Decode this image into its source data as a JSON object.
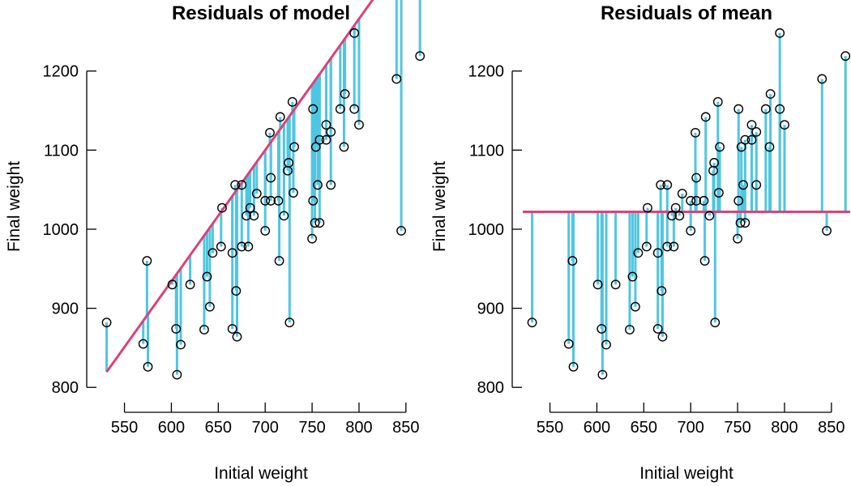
{
  "chart_data": [
    {
      "type": "scatter",
      "title": "Residuals of model",
      "xlabel": "Initial weight",
      "ylabel": "Final weight",
      "xlim": [
        521,
        870
      ],
      "ylim": [
        790,
        1255
      ],
      "xticks": [
        550,
        600,
        650,
        700,
        750,
        800,
        850
      ],
      "yticks": [
        800,
        900,
        1000,
        1100,
        1200
      ],
      "fit_line": {
        "kind": "regression",
        "intercept": -62,
        "slope": 1.66
      },
      "residual_color": "#4fc6e1",
      "line_color": "#d9427a",
      "points": [
        {
          "x": 531,
          "y": 882
        },
        {
          "x": 570,
          "y": 855
        },
        {
          "x": 574,
          "y": 960
        },
        {
          "x": 575,
          "y": 826
        },
        {
          "x": 601,
          "y": 930
        },
        {
          "x": 605,
          "y": 874
        },
        {
          "x": 606,
          "y": 816
        },
        {
          "x": 610,
          "y": 854
        },
        {
          "x": 620,
          "y": 930
        },
        {
          "x": 635,
          "y": 873
        },
        {
          "x": 638,
          "y": 940
        },
        {
          "x": 641,
          "y": 902
        },
        {
          "x": 644,
          "y": 970
        },
        {
          "x": 653,
          "y": 978
        },
        {
          "x": 654,
          "y": 1027
        },
        {
          "x": 665,
          "y": 970
        },
        {
          "x": 665,
          "y": 874
        },
        {
          "x": 668,
          "y": 1056
        },
        {
          "x": 669,
          "y": 922
        },
        {
          "x": 670,
          "y": 864
        },
        {
          "x": 675,
          "y": 978
        },
        {
          "x": 675,
          "y": 1056
        },
        {
          "x": 680,
          "y": 1017
        },
        {
          "x": 682,
          "y": 978
        },
        {
          "x": 684,
          "y": 1027
        },
        {
          "x": 688,
          "y": 1017
        },
        {
          "x": 691,
          "y": 1045
        },
        {
          "x": 700,
          "y": 998
        },
        {
          "x": 700,
          "y": 1036
        },
        {
          "x": 705,
          "y": 1122
        },
        {
          "x": 706,
          "y": 1065
        },
        {
          "x": 706,
          "y": 1036
        },
        {
          "x": 714,
          "y": 1036
        },
        {
          "x": 715,
          "y": 960
        },
        {
          "x": 716,
          "y": 1142
        },
        {
          "x": 720,
          "y": 1017
        },
        {
          "x": 724,
          "y": 1074
        },
        {
          "x": 725,
          "y": 1084
        },
        {
          "x": 726,
          "y": 882
        },
        {
          "x": 729,
          "y": 1161
        },
        {
          "x": 730,
          "y": 1046
        },
        {
          "x": 731,
          "y": 1104
        },
        {
          "x": 750,
          "y": 988
        },
        {
          "x": 751,
          "y": 1036
        },
        {
          "x": 751,
          "y": 1152
        },
        {
          "x": 753,
          "y": 1008
        },
        {
          "x": 754,
          "y": 1104
        },
        {
          "x": 756,
          "y": 1056
        },
        {
          "x": 758,
          "y": 1113
        },
        {
          "x": 758,
          "y": 1008
        },
        {
          "x": 765,
          "y": 1113
        },
        {
          "x": 765,
          "y": 1132
        },
        {
          "x": 770,
          "y": 1123
        },
        {
          "x": 770,
          "y": 1056
        },
        {
          "x": 780,
          "y": 1152
        },
        {
          "x": 784,
          "y": 1104
        },
        {
          "x": 785,
          "y": 1171
        },
        {
          "x": 795,
          "y": 1152
        },
        {
          "x": 795,
          "y": 1248
        },
        {
          "x": 800,
          "y": 1132
        },
        {
          "x": 840,
          "y": 1190
        },
        {
          "x": 845,
          "y": 998
        },
        {
          "x": 865,
          "y": 1219
        }
      ]
    },
    {
      "type": "scatter",
      "title": "Residuals of mean",
      "xlabel": "Initial weight",
      "ylabel": "Final weight",
      "xlim": [
        521,
        870
      ],
      "ylim": [
        790,
        1255
      ],
      "xticks": [
        550,
        600,
        650,
        700,
        750,
        800,
        850
      ],
      "yticks": [
        800,
        900,
        1000,
        1100,
        1200
      ],
      "fit_line": {
        "kind": "mean",
        "value": 1022
      },
      "residual_color": "#4fc6e1",
      "line_color": "#d9427a",
      "points": "same"
    }
  ]
}
